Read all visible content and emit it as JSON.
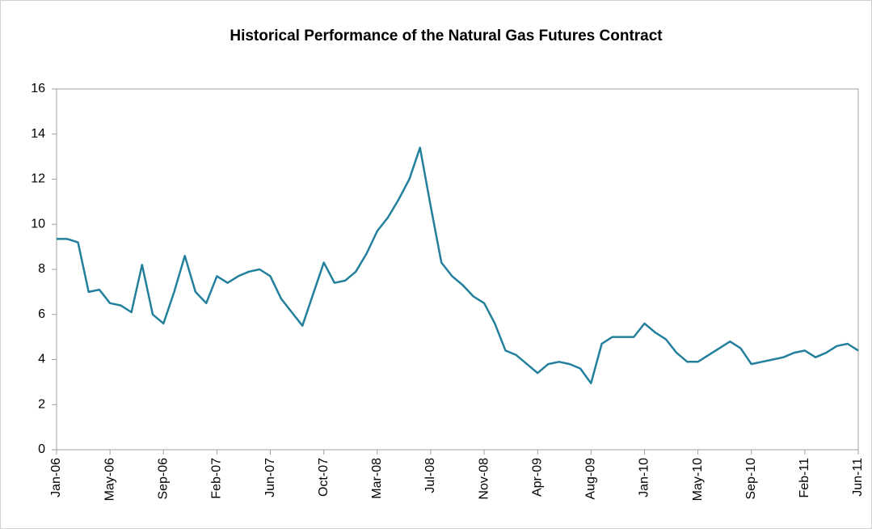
{
  "chart_data": {
    "type": "line",
    "title": "Historical Performance of the Natural Gas Futures Contract",
    "categories": [
      "Jan-06",
      null,
      null,
      null,
      null,
      "May-06",
      null,
      null,
      null,
      null,
      "Sep-06",
      null,
      null,
      null,
      null,
      "Feb-07",
      null,
      null,
      null,
      null,
      "Jun-07",
      null,
      null,
      null,
      null,
      "Oct-07",
      null,
      null,
      null,
      null,
      "Mar-08",
      null,
      null,
      null,
      null,
      "Jul-08",
      null,
      null,
      null,
      null,
      "Nov-08",
      null,
      null,
      null,
      null,
      "Apr-09",
      null,
      null,
      null,
      null,
      "Aug-09",
      null,
      null,
      null,
      null,
      "Jan-10",
      null,
      null,
      null,
      null,
      "May-10",
      null,
      null,
      null,
      null,
      "Sep-10",
      null,
      null,
      null,
      null,
      "Feb-11",
      null,
      null,
      null,
      null,
      "Jun-11"
    ],
    "series": [
      {
        "color": "#23809c",
        "values": [
          9.35,
          9.35,
          9.2,
          7.0,
          7.1,
          6.5,
          6.4,
          6.1,
          8.2,
          6.0,
          5.6,
          7.0,
          8.6,
          7.0,
          6.5,
          7.7,
          7.4,
          7.7,
          7.9,
          8.0,
          7.7,
          6.7,
          6.1,
          5.5,
          6.9,
          8.3,
          7.4,
          7.5,
          7.9,
          8.7,
          9.7,
          10.3,
          11.1,
          12.0,
          13.4,
          10.8,
          8.3,
          7.7,
          7.3,
          6.8,
          6.5,
          5.6,
          4.4,
          4.2,
          3.8,
          3.4,
          3.8,
          3.9,
          3.8,
          3.6,
          2.95,
          4.7,
          5.0,
          5.0,
          5.0,
          5.6,
          5.2,
          4.9,
          4.3,
          3.9,
          3.9,
          4.2,
          4.5,
          4.8,
          4.5,
          3.8,
          3.9,
          4.0,
          4.1,
          4.3,
          4.4,
          4.1,
          4.3,
          4.6,
          4.7,
          4.4
        ]
      }
    ],
    "ylim": [
      0,
      16
    ],
    "yticks": [
      0,
      2,
      4,
      6,
      8,
      10,
      12,
      14,
      16
    ],
    "grid": false
  }
}
